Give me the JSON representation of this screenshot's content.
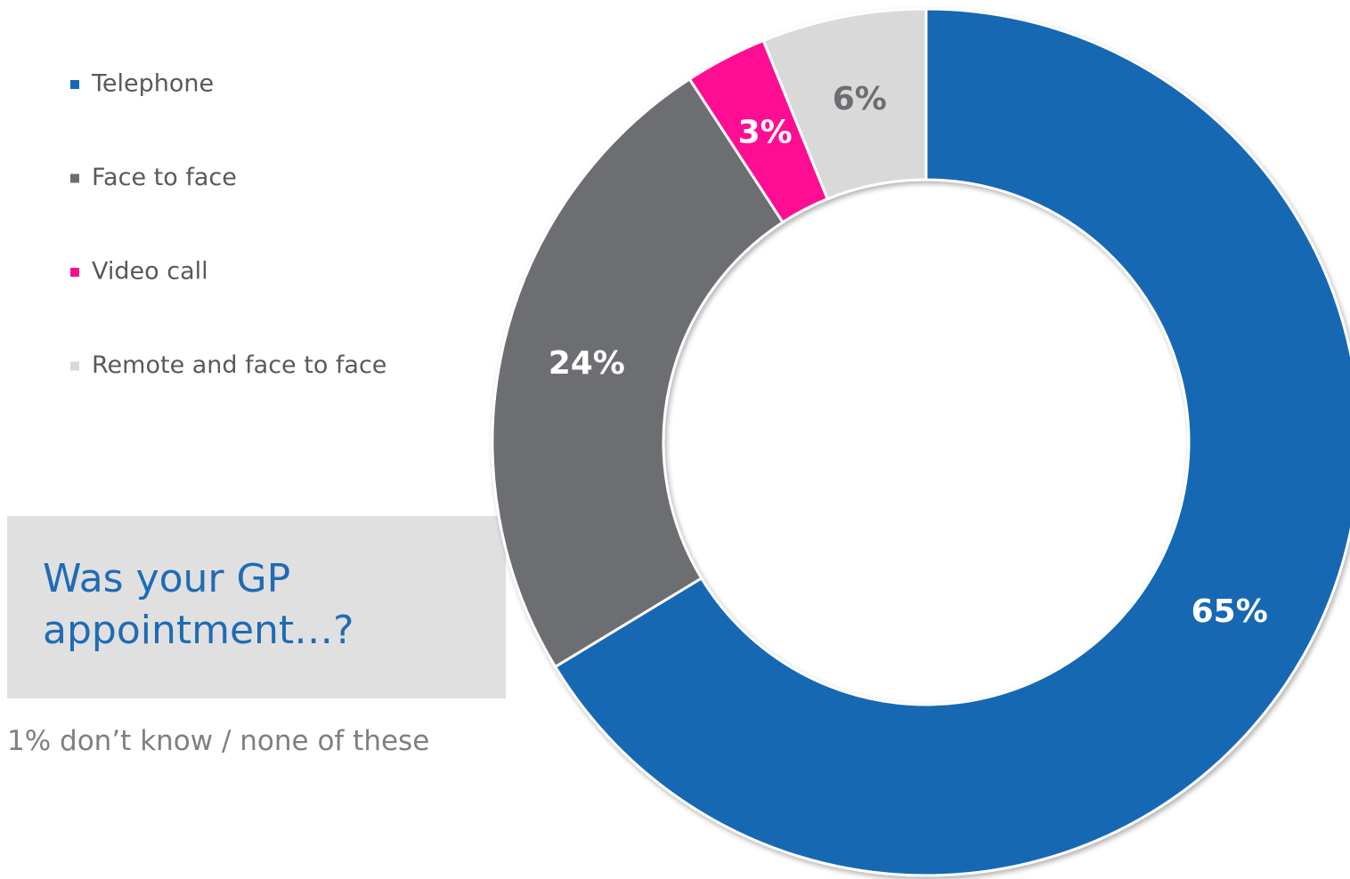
{
  "chart_data": {
    "type": "donut",
    "title": "Was your GP appointment…?",
    "note": "1% don’t know / none of these",
    "categories": [
      "Telephone",
      "Face to face",
      "Video call",
      "Remote and face to face"
    ],
    "values": [
      65,
      24,
      3,
      6
    ],
    "value_labels": [
      "65%",
      "24%",
      "3%",
      "6%"
    ],
    "colors": [
      "#1668b3",
      "#6d6e71",
      "#ff0a93",
      "#d9d9d9"
    ],
    "label_colors": [
      "#ffffff",
      "#ffffff",
      "#ffffff",
      "#6d6e71"
    ],
    "legend": "top-left"
  }
}
